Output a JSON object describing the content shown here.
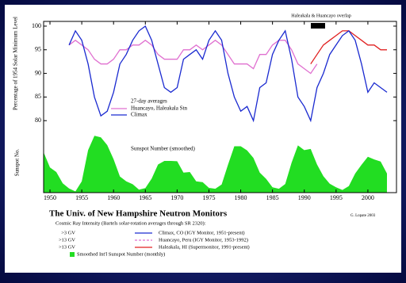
{
  "chart_data": [
    {
      "type": "line",
      "ylabel": "Percentage of 1954 Solar Minimum Level",
      "annotation": "Haleakala & Huancayo overlap",
      "legend_title": "27-day averages",
      "xlim": [
        1949,
        2004.5
      ],
      "ylim": [
        75,
        101
      ],
      "yticks": [
        80,
        85,
        90,
        95,
        100
      ],
      "series": [
        {
          "name": "Huancayo, Haleakala Stn",
          "color": "#e070d0",
          "x": [
            1953,
            1954,
            1955,
            1956,
            1957,
            1958,
            1959,
            1960,
            1961,
            1962,
            1963,
            1964,
            1965,
            1966,
            1967,
            1968,
            1969,
            1970,
            1971,
            1972,
            1973,
            1974,
            1975,
            1976,
            1977,
            1978,
            1979,
            1980,
            1981,
            1982,
            1983,
            1984,
            1985,
            1986,
            1987,
            1988,
            1989,
            1990,
            1991,
            1992
          ],
          "values": [
            96,
            97,
            96,
            95,
            93,
            92,
            92,
            93,
            95,
            95,
            96,
            96,
            97,
            96,
            94,
            93,
            93,
            93,
            95,
            95,
            96,
            95,
            96,
            97,
            96,
            94,
            92,
            92,
            92,
            91,
            94,
            94,
            96,
            97,
            97,
            95,
            92,
            91,
            90,
            92
          ]
        },
        {
          "color": "#e02020",
          "x": [
            1991,
            1992,
            1993,
            1994,
            1995,
            1996,
            1997,
            1998,
            1999,
            2000,
            2001,
            2002,
            2003
          ],
          "values": [
            92,
            94,
            96,
            97,
            98,
            99,
            99,
            98,
            97,
            96,
            96,
            95,
            95
          ]
        },
        {
          "name": "Climax",
          "color": "#1a2ad0",
          "x": [
            1953,
            1954,
            1955,
            1956,
            1957,
            1958,
            1959,
            1960,
            1961,
            1962,
            1963,
            1964,
            1965,
            1966,
            1967,
            1968,
            1969,
            1970,
            1971,
            1972,
            1973,
            1974,
            1975,
            1976,
            1977,
            1978,
            1979,
            1980,
            1981,
            1982,
            1983,
            1984,
            1985,
            1986,
            1987,
            1988,
            1989,
            1990,
            1991,
            1992,
            1993,
            1994,
            1995,
            1996,
            1997,
            1998,
            1999,
            2000,
            2001,
            2002,
            2003
          ],
          "values": [
            96,
            99,
            97,
            92,
            85,
            81,
            82,
            86,
            92,
            94,
            97,
            99,
            100,
            97,
            92,
            87,
            86,
            87,
            93,
            94,
            95,
            93,
            97,
            99,
            97,
            90,
            85,
            82,
            83,
            80,
            87,
            88,
            94,
            97,
            99,
            93,
            85,
            83,
            80,
            87,
            90,
            94,
            96,
            98,
            99,
            97,
            92,
            86,
            88,
            87,
            86
          ]
        }
      ]
    },
    {
      "type": "area",
      "ylabel": "Sunspot No.",
      "label": "Sunspot Number (smoothed)",
      "xlim": [
        1949,
        2004.5
      ],
      "xticks": [
        1950,
        1955,
        1960,
        1965,
        1970,
        1975,
        1980,
        1985,
        1990,
        1995,
        2000
      ],
      "ylim": [
        0,
        220
      ],
      "color": "#22dd22",
      "x": [
        1949,
        1950,
        1951,
        1952,
        1953,
        1954,
        1955,
        1956,
        1957,
        1958,
        1959,
        1960,
        1961,
        1962,
        1963,
        1964,
        1965,
        1966,
        1967,
        1968,
        1969,
        1970,
        1971,
        1972,
        1973,
        1974,
        1975,
        1976,
        1977,
        1978,
        1979,
        1980,
        1981,
        1982,
        1983,
        1984,
        1985,
        1986,
        1987,
        1988,
        1989,
        1990,
        1991,
        1992,
        1993,
        1994,
        1995,
        1996,
        1997,
        1998,
        1999,
        2000,
        2001,
        2002,
        2003
      ],
      "values": [
        135,
        84,
        69,
        31,
        14,
        4,
        38,
        142,
        190,
        185,
        159,
        112,
        54,
        38,
        28,
        10,
        15,
        47,
        94,
        106,
        106,
        105,
        67,
        69,
        38,
        35,
        16,
        13,
        27,
        93,
        155,
        155,
        141,
        116,
        67,
        46,
        18,
        13,
        29,
        100,
        158,
        142,
        146,
        94,
        55,
        30,
        18,
        9,
        22,
        64,
        93,
        120,
        111,
        104,
        64
      ]
    }
  ],
  "footer": {
    "title": "The Univ. of New Hampshire Neutron Monitors",
    "subtitle": "Cosmic Ray Intensity (Bartels solar-rotation averages through SR 2320):",
    "credit": "G. Lopate 2003",
    "rows": [
      {
        "cutoff": ">3 GV",
        "text": "Climax, CO (IGY Monitor, 1951-present)"
      },
      {
        "cutoff": ">13 GV",
        "text": "Huancayo, Peru (IGY Monitor, 1953-1992)"
      },
      {
        "cutoff": ">13 GV",
        "text": "Haleakala, HI (Supermonitor, 1991-present)"
      },
      {
        "text": "Smoothed Int'l Sunspot Number (monthly)"
      }
    ]
  }
}
